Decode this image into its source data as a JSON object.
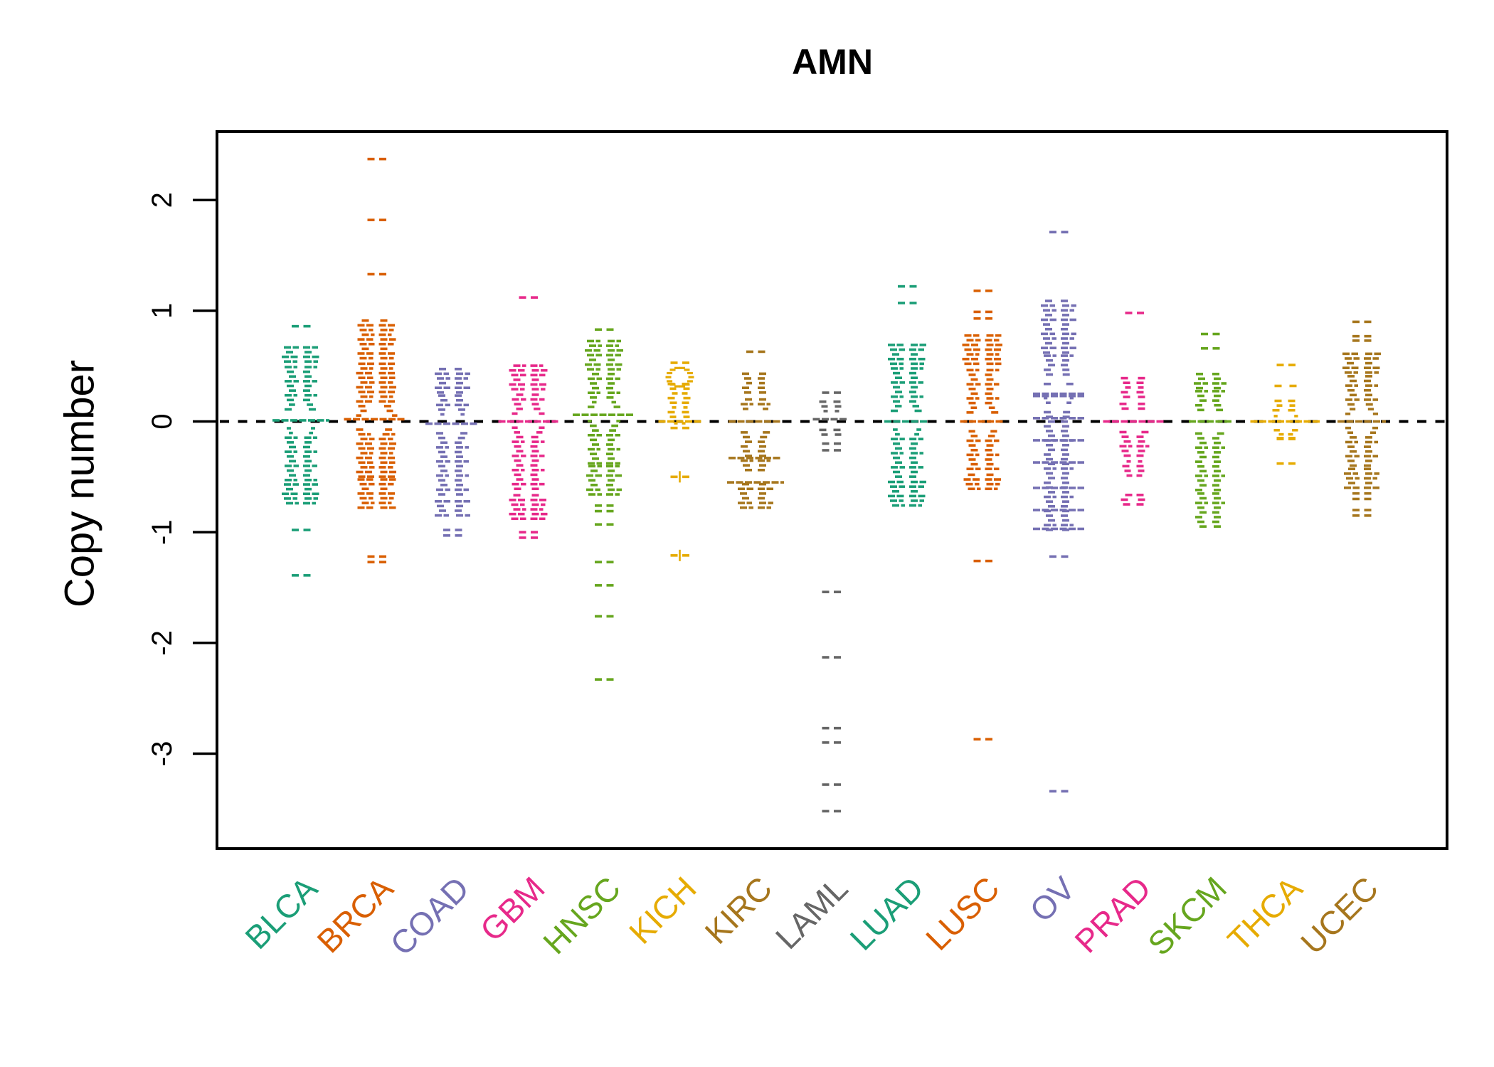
{
  "chart_data": {
    "type": "scatter",
    "subtype": "beeswarm-strip",
    "title": "AMN",
    "xlabel": "",
    "ylabel": "Copy number",
    "yticks": [
      2,
      1,
      0,
      -1,
      -2,
      -3
    ],
    "ylim": [
      -3.9,
      2.6
    ],
    "reference_line": 0,
    "grid": false,
    "legend": "none",
    "categories": [
      "BLCA",
      "BRCA",
      "COAD",
      "GBM",
      "HNSC",
      "KICH",
      "KIRC",
      "LAML",
      "LUAD",
      "LUSC",
      "OV",
      "PRAD",
      "SKCM",
      "THCA",
      "UCEC"
    ],
    "palette_note": "Dark2 palette cycling over 8 colors",
    "axis_color": "#000000",
    "series": [
      {
        "name": "BLCA",
        "color": "#1B9E77",
        "median": 0,
        "bands": [
          [
            0.52,
            0.7,
            24
          ],
          [
            -0.55,
            0.52,
            20
          ],
          [
            -0.76,
            -0.55,
            24
          ]
        ],
        "bar_hw": 40,
        "eye": {
          "c": 0.01,
          "hh": 0.17,
          "hw": 22
        },
        "outliers": [
          0.86,
          -0.98,
          -1.39
        ]
      },
      {
        "name": "BRCA",
        "color": "#D95F02",
        "median": 0,
        "bands": [
          [
            0.55,
            0.92,
            24
          ],
          [
            -0.52,
            0.55,
            26
          ],
          [
            -0.8,
            -0.52,
            24
          ]
        ],
        "bar_hw": 46,
        "eye": {
          "c": 0.02,
          "hh": 0.16,
          "hw": 24
        },
        "outliers": [
          2.37,
          1.82,
          1.33,
          -1.22,
          -1.27
        ]
      },
      {
        "name": "COAD",
        "color": "#7570B3",
        "median": 0,
        "bands": [
          [
            0.24,
            0.5,
            22
          ],
          [
            -0.68,
            0.24,
            20
          ],
          [
            -0.87,
            -0.68,
            22
          ]
        ],
        "bar_hw": 38,
        "eye": {
          "c": -0.02,
          "hh": 0.15,
          "hw": 22
        },
        "outliers": [
          -0.98,
          -1.03
        ]
      },
      {
        "name": "GBM",
        "color": "#E7298A",
        "median": 0,
        "bands": [
          [
            0.27,
            0.54,
            24
          ],
          [
            -0.63,
            0.27,
            20
          ],
          [
            -0.9,
            -0.63,
            24
          ]
        ],
        "bar_hw": 42,
        "eye": {
          "c": 0.0,
          "hh": 0.15,
          "hw": 22
        },
        "outliers": [
          1.12,
          -1.0,
          -1.05
        ]
      },
      {
        "name": "HNSC",
        "color": "#66A61E",
        "median": 0.05,
        "bands": [
          [
            0.45,
            0.74,
            24
          ],
          [
            -0.4,
            0.45,
            20
          ],
          [
            -0.68,
            -0.4,
            22
          ]
        ],
        "bar_hw": 44,
        "eye": {
          "c": 0.06,
          "hh": 0.16,
          "hw": 22
        },
        "outliers": [
          0.83,
          -0.76,
          -0.81,
          -0.93,
          -1.27,
          -1.48,
          -1.76,
          -2.33
        ]
      },
      {
        "name": "KICH",
        "color": "#E6AB02",
        "median": 0.3,
        "bands": [
          [
            0.02,
            0.34,
            14
          ],
          [
            -0.08,
            0.02,
            8
          ]
        ],
        "bar_hw": 30,
        "eye": {
          "c": 0,
          "hh": 0,
          "hw": 0
        },
        "ring": {
          "v": 0.4,
          "rx": 16,
          "rv": 0.085
        },
        "outliers": [
          0.53
        ],
        "plus_outliers": [
          -0.5,
          -1.21
        ]
      },
      {
        "name": "KIRC",
        "color": "#A6761D",
        "median": 0,
        "bands": [
          [
            0.24,
            0.47,
            16
          ],
          [
            -0.46,
            0.24,
            18
          ],
          [
            -0.8,
            -0.55,
            22
          ]
        ],
        "bar_hw": 38,
        "eye": {
          "c": 0,
          "hh": 0.15,
          "hw": 24
        },
        "wings": [
          [
            -0.33,
            38
          ],
          [
            -0.55,
            40
          ]
        ],
        "outliers": [
          0.63
        ]
      },
      {
        "name": "LAML",
        "color": "#666666",
        "median": 0,
        "bands": [
          [
            -0.14,
            0.2,
            14
          ]
        ],
        "bar_hw": 26,
        "eye": {
          "c": 0.02,
          "hh": 0.09,
          "hw": 14
        },
        "outliers": [
          0.26,
          -0.2,
          -0.26,
          -1.54,
          -2.13,
          -2.77,
          -2.9,
          -3.28,
          -3.52
        ]
      },
      {
        "name": "LUAD",
        "color": "#1B9E77",
        "median": 0,
        "bands": [
          [
            0.5,
            0.7,
            24
          ],
          [
            -0.52,
            0.5,
            20
          ],
          [
            -0.78,
            -0.52,
            24
          ]
        ],
        "bar_hw": 32,
        "eye": {
          "c": 0.0,
          "hh": 0.16,
          "hw": 22
        },
        "outliers": [
          1.22,
          1.07
        ]
      },
      {
        "name": "LUSC",
        "color": "#D95F02",
        "median": 0,
        "bands": [
          [
            0.5,
            0.78,
            26
          ],
          [
            -0.45,
            0.5,
            20
          ],
          [
            -0.63,
            -0.45,
            24
          ]
        ],
        "bar_hw": 32,
        "eye": {
          "c": 0,
          "hh": 0.15,
          "hw": 22
        },
        "outliers": [
          1.18,
          0.99,
          0.93,
          -1.26,
          -2.87
        ]
      },
      {
        "name": "OV",
        "color": "#7570B3",
        "median": 0.2,
        "bands": [
          [
            0.6,
            1.12,
            22
          ],
          [
            -1.0,
            0.6,
            18
          ]
        ],
        "bar_hw": 36,
        "eye": {
          "c": 0.25,
          "hh": 0.22,
          "hw": 16
        },
        "wings": [
          [
            0.23,
            36
          ],
          [
            0.03,
            36
          ],
          [
            -0.17,
            36
          ],
          [
            -0.37,
            36
          ],
          [
            -0.6,
            36
          ],
          [
            -0.8,
            36
          ],
          [
            -0.97,
            36
          ]
        ],
        "outliers": [
          1.71,
          -1.22,
          -3.34
        ]
      },
      {
        "name": "PRAD",
        "color": "#E7298A",
        "median": 0,
        "bands": [
          [
            0.2,
            0.4,
            16
          ],
          [
            -0.33,
            0.2,
            18
          ],
          [
            -0.51,
            -0.36,
            14
          ],
          [
            -0.77,
            -0.64,
            16
          ]
        ],
        "bar_hw": 44,
        "eye": {
          "c": 0,
          "hh": 0.13,
          "hw": 22
        },
        "outliers": [
          0.98
        ]
      },
      {
        "name": "SKCM",
        "color": "#66A61E",
        "median": 0,
        "bands": [
          [
            0.28,
            0.46,
            20
          ],
          [
            -0.64,
            0.28,
            18
          ],
          [
            -0.97,
            -0.64,
            18
          ]
        ],
        "bar_hw": 30,
        "eye": {
          "c": 0,
          "hh": 0.15,
          "hw": 20
        },
        "outliers": [
          0.79,
          0.66
        ]
      },
      {
        "name": "THCA",
        "color": "#E6AB02",
        "median": 0,
        "bands": [
          [
            0.3,
            0.34,
            16
          ],
          [
            0.08,
            0.22,
            16
          ],
          [
            -0.1,
            0.08,
            14
          ],
          [
            -0.18,
            -0.1,
            10
          ]
        ],
        "bar_hw": 50,
        "eye": {
          "c": 0.0,
          "hh": 0.1,
          "hw": 20
        },
        "outliers": [
          0.51,
          -0.15,
          -0.38
        ]
      },
      {
        "name": "UCEC",
        "color": "#A6761D",
        "median": 0,
        "bands": [
          [
            0.42,
            0.62,
            24
          ],
          [
            -0.42,
            0.42,
            20
          ],
          [
            -0.62,
            -0.42,
            22
          ]
        ],
        "bar_hw": 34,
        "eye": {
          "c": 0,
          "hh": 0.16,
          "hw": 22
        },
        "outliers": [
          0.9,
          0.77,
          0.73,
          -0.65,
          -0.7,
          -0.8,
          -0.85
        ]
      }
    ]
  }
}
